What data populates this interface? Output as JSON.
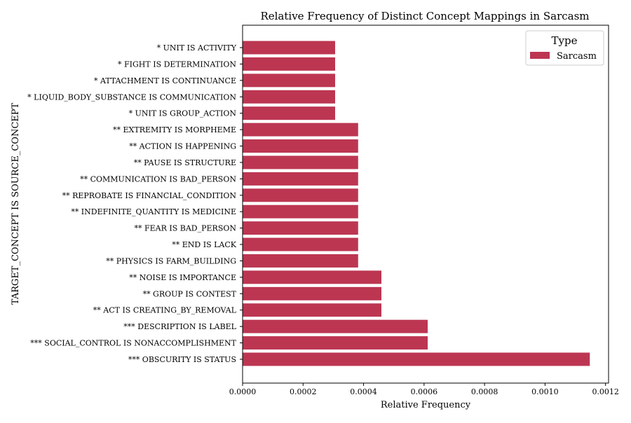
{
  "chart_data": {
    "type": "bar",
    "orientation": "horizontal",
    "title": "Relative Frequency of Distinct Concept Mappings in Sarcasm",
    "xlabel": "Relative Frequency",
    "ylabel": "TARGET_CONCEPT IS SOURCE_CONCEPT",
    "xlim": [
      0,
      0.00121
    ],
    "xticks": [
      "0.0000",
      "0.0002",
      "0.0004",
      "0.0006",
      "0.0008",
      "0.0010",
      "0.0012"
    ],
    "xtick_values": [
      0,
      0.0002,
      0.0004,
      0.0006,
      0.0008,
      0.001,
      0.0012
    ],
    "grid": false,
    "legend": {
      "title": "Type",
      "placement": "top-right"
    },
    "categories": [
      "* UNIT IS ACTIVITY",
      "* FIGHT IS DETERMINATION",
      "* ATTACHMENT IS CONTINUANCE",
      "* LIQUID_BODY_SUBSTANCE IS COMMUNICATION",
      "* UNIT IS GROUP_ACTION",
      "** EXTREMITY IS MORPHEME",
      "** ACTION IS HAPPENING",
      "** PAUSE IS STRUCTURE",
      "** COMMUNICATION IS BAD_PERSON",
      "** REPROBATE IS FINANCIAL_CONDITION",
      "** INDEFINITE_QUANTITY IS MEDICINE",
      "** FEAR IS BAD_PERSON",
      "** END IS LACK",
      "** PHYSICS IS FARM_BUILDING",
      "** NOISE IS IMPORTANCE",
      "** GROUP IS CONTEST",
      "** ACT IS CREATING_BY_REMOVAL",
      "*** DESCRIPTION IS LABEL",
      "*** SOCIAL_CONTROL IS NONACCOMPLISHMENT",
      "*** OBSCURITY IS STATUS"
    ],
    "series": [
      {
        "name": "Sarcasm",
        "color": "#bc3652",
        "values": [
          0.000306,
          0.000306,
          0.000306,
          0.000306,
          0.000306,
          0.000382,
          0.000382,
          0.000382,
          0.000382,
          0.000382,
          0.000382,
          0.000382,
          0.000382,
          0.000382,
          0.000459,
          0.000459,
          0.000459,
          0.000612,
          0.000612,
          0.001148
        ]
      }
    ]
  }
}
